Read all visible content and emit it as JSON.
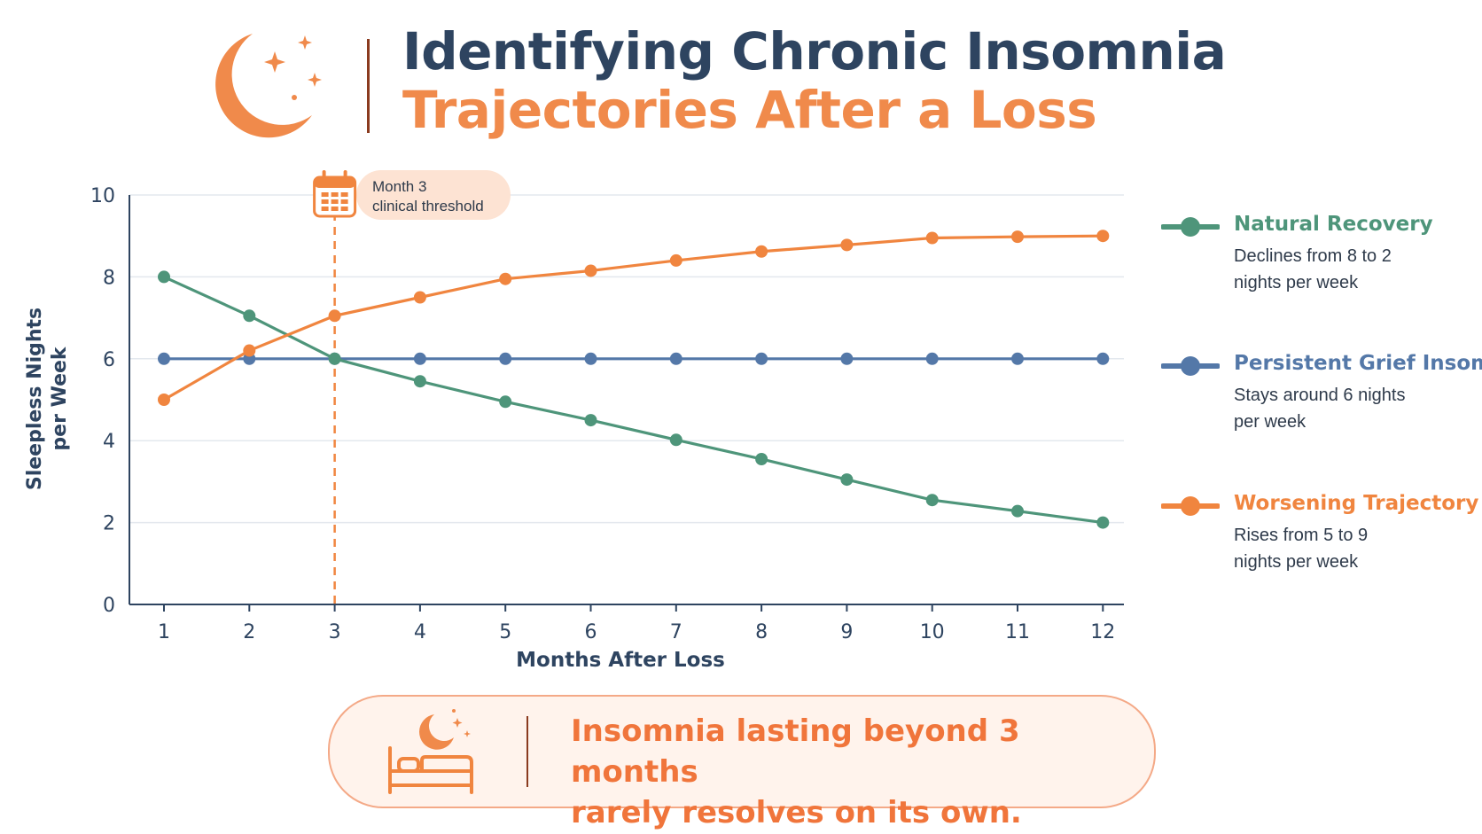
{
  "header": {
    "title_line1": "Identifying Chronic Insomnia",
    "title_line2": "Trajectories After a Loss",
    "logo_icon": "crescent-moon-stars-icon"
  },
  "chart_data": {
    "type": "line",
    "x": [
      1,
      2,
      3,
      4,
      5,
      6,
      7,
      8,
      9,
      10,
      11,
      12
    ],
    "xlabel": "Months After Loss",
    "ylabel": "Sleepless Nights per Week",
    "ylim": [
      0,
      10
    ],
    "yticks": [
      0,
      2,
      4,
      6,
      8,
      10
    ],
    "grid": true,
    "series": [
      {
        "name": "Natural Recovery",
        "color": "#4e957a",
        "values": [
          8,
          7.05,
          6,
          5.45,
          4.95,
          4.5,
          4.02,
          3.55,
          3.05,
          2.55,
          2.28,
          2
        ]
      },
      {
        "name": "Persistent Grief Insomnia",
        "color": "#5478a8",
        "values": [
          6,
          6,
          6,
          6,
          6,
          6,
          6,
          6,
          6,
          6,
          6,
          6
        ]
      },
      {
        "name": "Worsening Trajectory",
        "color": "#f0853f",
        "values": [
          5,
          6.2,
          7.05,
          7.5,
          7.95,
          8.15,
          8.4,
          8.62,
          8.78,
          8.95,
          8.98,
          9
        ]
      }
    ],
    "annotation": {
      "x": 3,
      "line1": "Month 3",
      "line2": "clinical threshold",
      "icon": "calendar-icon",
      "color": "#f0853f"
    }
  },
  "legend": [
    {
      "name": "Natural Recovery",
      "line1": "Declines from 8 to 2",
      "line2": "nights per week",
      "color": "#4e957a"
    },
    {
      "name": "Persistent Grief Insomnia",
      "line1": "Stays around 6 nights",
      "line2": "per week",
      "color": "#5478a8"
    },
    {
      "name": "Worsening Trajectory",
      "line1": "Rises from 5 to 9",
      "line2": "nights per week",
      "color": "#f0853f"
    }
  ],
  "callout": {
    "line1": "Insomnia lasting beyond 3 months",
    "line2": "rarely resolves on its own.",
    "icon": "bed-moon-icon"
  }
}
